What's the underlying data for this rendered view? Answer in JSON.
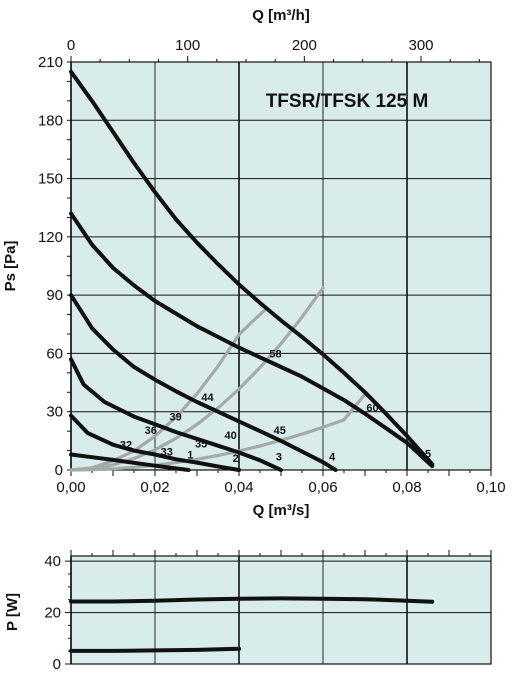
{
  "colors": {
    "plot_background": "#d8ece9",
    "grid": "#111111",
    "speed_curve": "#111111",
    "system_curve": "#a3aaa8",
    "text": "#111111"
  },
  "chart_data": [
    {
      "type": "line",
      "title": "TFSR/TFSK 125 M",
      "xlabel": "Q [m³/s]",
      "ylabel": "Ps [Pa]",
      "x2label": "Q [m³/h]",
      "xlim": [
        0,
        0.1
      ],
      "ylim": [
        0,
        210
      ],
      "x2lim": [
        0,
        360
      ],
      "xticks": [
        0,
        0.02,
        0.04,
        0.06,
        0.08,
        0.1
      ],
      "xtick_labels": [
        "0,00",
        "0,02",
        "0,04",
        "0,06",
        "0,08",
        "0,10"
      ],
      "x2ticks": [
        0,
        100,
        200,
        300
      ],
      "x2tick_labels": [
        "0",
        "100",
        "200",
        "300"
      ],
      "yticks": [
        0,
        30,
        60,
        90,
        120,
        150,
        180,
        210
      ],
      "ytick_labels": [
        "0",
        "30",
        "60",
        "90",
        "120",
        "150",
        "180",
        "210"
      ],
      "grid": true,
      "series": [
        {
          "name": "1",
          "kind": "speed",
          "x": [
            0.0,
            0.005,
            0.01,
            0.015,
            0.02,
            0.025,
            0.028
          ],
          "y": [
            8,
            6.6,
            5.2,
            3.7,
            2.2,
            0.8,
            0
          ]
        },
        {
          "name": "2",
          "kind": "speed",
          "x": [
            0.0,
            0.004,
            0.01,
            0.015,
            0.02,
            0.025,
            0.03,
            0.035,
            0.04
          ],
          "y": [
            28,
            19,
            13,
            10,
            8,
            5.5,
            3.8,
            1.8,
            0
          ]
        },
        {
          "name": "3",
          "kind": "speed",
          "x": [
            0.0,
            0.003,
            0.008,
            0.015,
            0.02,
            0.025,
            0.03,
            0.035,
            0.04,
            0.045,
            0.05
          ],
          "y": [
            57,
            44,
            35,
            27.5,
            23.5,
            19.5,
            16,
            12.5,
            9,
            5,
            0
          ]
        },
        {
          "name": "4",
          "kind": "speed",
          "x": [
            0.0,
            0.005,
            0.01,
            0.015,
            0.02,
            0.025,
            0.03,
            0.035,
            0.04,
            0.045,
            0.05,
            0.055,
            0.06,
            0.063
          ],
          "y": [
            90,
            73,
            62,
            53,
            46.5,
            40.5,
            35,
            30,
            25,
            20,
            15,
            9.5,
            4,
            0
          ]
        },
        {
          "name": "5",
          "kind": "speed",
          "x": [
            0.0,
            0.005,
            0.01,
            0.015,
            0.02,
            0.025,
            0.03,
            0.035,
            0.04,
            0.045,
            0.05,
            0.055,
            0.06,
            0.065,
            0.07,
            0.075,
            0.08,
            0.086
          ],
          "y": [
            132,
            116,
            104,
            95,
            87,
            80.5,
            74,
            68.5,
            63,
            58,
            53,
            48,
            42,
            36,
            29,
            21.5,
            14,
            2
          ]
        },
        {
          "name": "6",
          "kind": "speed",
          "x": [
            0.0,
            0.005,
            0.01,
            0.015,
            0.02,
            0.025,
            0.03,
            0.035,
            0.04,
            0.045,
            0.05,
            0.055,
            0.06,
            0.065,
            0.07,
            0.075,
            0.08,
            0.086
          ],
          "y": [
            205,
            190,
            174,
            158,
            143,
            129,
            117,
            106,
            95.5,
            86,
            77,
            68.5,
            59.5,
            50,
            40,
            29,
            17.5,
            3
          ]
        },
        {
          "name": "system-1",
          "kind": "system",
          "x": [
            0.0,
            0.005,
            0.01,
            0.015,
            0.02,
            0.025,
            0.03,
            0.035,
            0.04,
            0.045,
            0.05,
            0.055,
            0.06,
            0.065,
            0.07
          ],
          "y": [
            0,
            0.2,
            0.6,
            1.4,
            2.4,
            3.8,
            5.5,
            7.5,
            9.8,
            12.4,
            15.3,
            18.5,
            22,
            25.8,
            39
          ]
        },
        {
          "name": "system-2",
          "kind": "system",
          "x": [
            0.0,
            0.005,
            0.01,
            0.015,
            0.02,
            0.025,
            0.03,
            0.035,
            0.04,
            0.045,
            0.05,
            0.055,
            0.06
          ],
          "y": [
            0,
            0.7,
            2.6,
            5.9,
            10.4,
            16.3,
            23.4,
            31.9,
            41.7,
            52.7,
            65,
            78.7,
            93.7
          ]
        },
        {
          "name": "system-3",
          "kind": "system",
          "x": [
            0.0,
            0.005,
            0.01,
            0.015,
            0.02,
            0.025,
            0.03,
            0.035,
            0.04,
            0.043,
            0.046
          ],
          "y": [
            0,
            1.1,
            4.8,
            9.8,
            17.4,
            27.2,
            39.2,
            53.4,
            69.7,
            76,
            82
          ]
        }
      ],
      "curve_labels": [
        {
          "text": "1",
          "x": 0.0284,
          "y": 6
        },
        {
          "text": "2",
          "x": 0.0392,
          "y": 4
        },
        {
          "text": "3",
          "x": 0.0495,
          "y": 4.8
        },
        {
          "text": "4",
          "x": 0.0622,
          "y": 5
        },
        {
          "text": "5",
          "x": 0.085,
          "y": 6.5
        },
        {
          "text": "32",
          "x": 0.0131,
          "y": 11
        },
        {
          "text": "33",
          "x": 0.0228,
          "y": 7.5
        },
        {
          "text": "35",
          "x": 0.031,
          "y": 11.5
        },
        {
          "text": "36",
          "x": 0.019,
          "y": 18.5
        },
        {
          "text": "39",
          "x": 0.0249,
          "y": 25.5
        },
        {
          "text": "40",
          "x": 0.038,
          "y": 16
        },
        {
          "text": "44",
          "x": 0.0325,
          "y": 35.5
        },
        {
          "text": "45",
          "x": 0.0497,
          "y": 18.5
        },
        {
          "text": "58",
          "x": 0.0487,
          "y": 58
        },
        {
          "text": "60",
          "x": 0.0718,
          "y": 30
        }
      ]
    },
    {
      "type": "line",
      "ylabel": "P [W]",
      "xlim": [
        0,
        0.1
      ],
      "ylim": [
        0,
        42
      ],
      "yticks": [
        0,
        20,
        40
      ],
      "ytick_labels": [
        "0",
        "20",
        "40"
      ],
      "grid": true,
      "series": [
        {
          "name": "power-high",
          "x": [
            0.0,
            0.01,
            0.02,
            0.03,
            0.04,
            0.05,
            0.06,
            0.07,
            0.08,
            0.086
          ],
          "y": [
            24.3,
            24.3,
            24.6,
            25.1,
            25.4,
            25.5,
            25.4,
            25.2,
            24.6,
            24.2
          ]
        },
        {
          "name": "power-low",
          "x": [
            0.0,
            0.01,
            0.02,
            0.03,
            0.04
          ],
          "y": [
            5.1,
            5.1,
            5.3,
            5.5,
            5.9
          ]
        }
      ]
    }
  ]
}
